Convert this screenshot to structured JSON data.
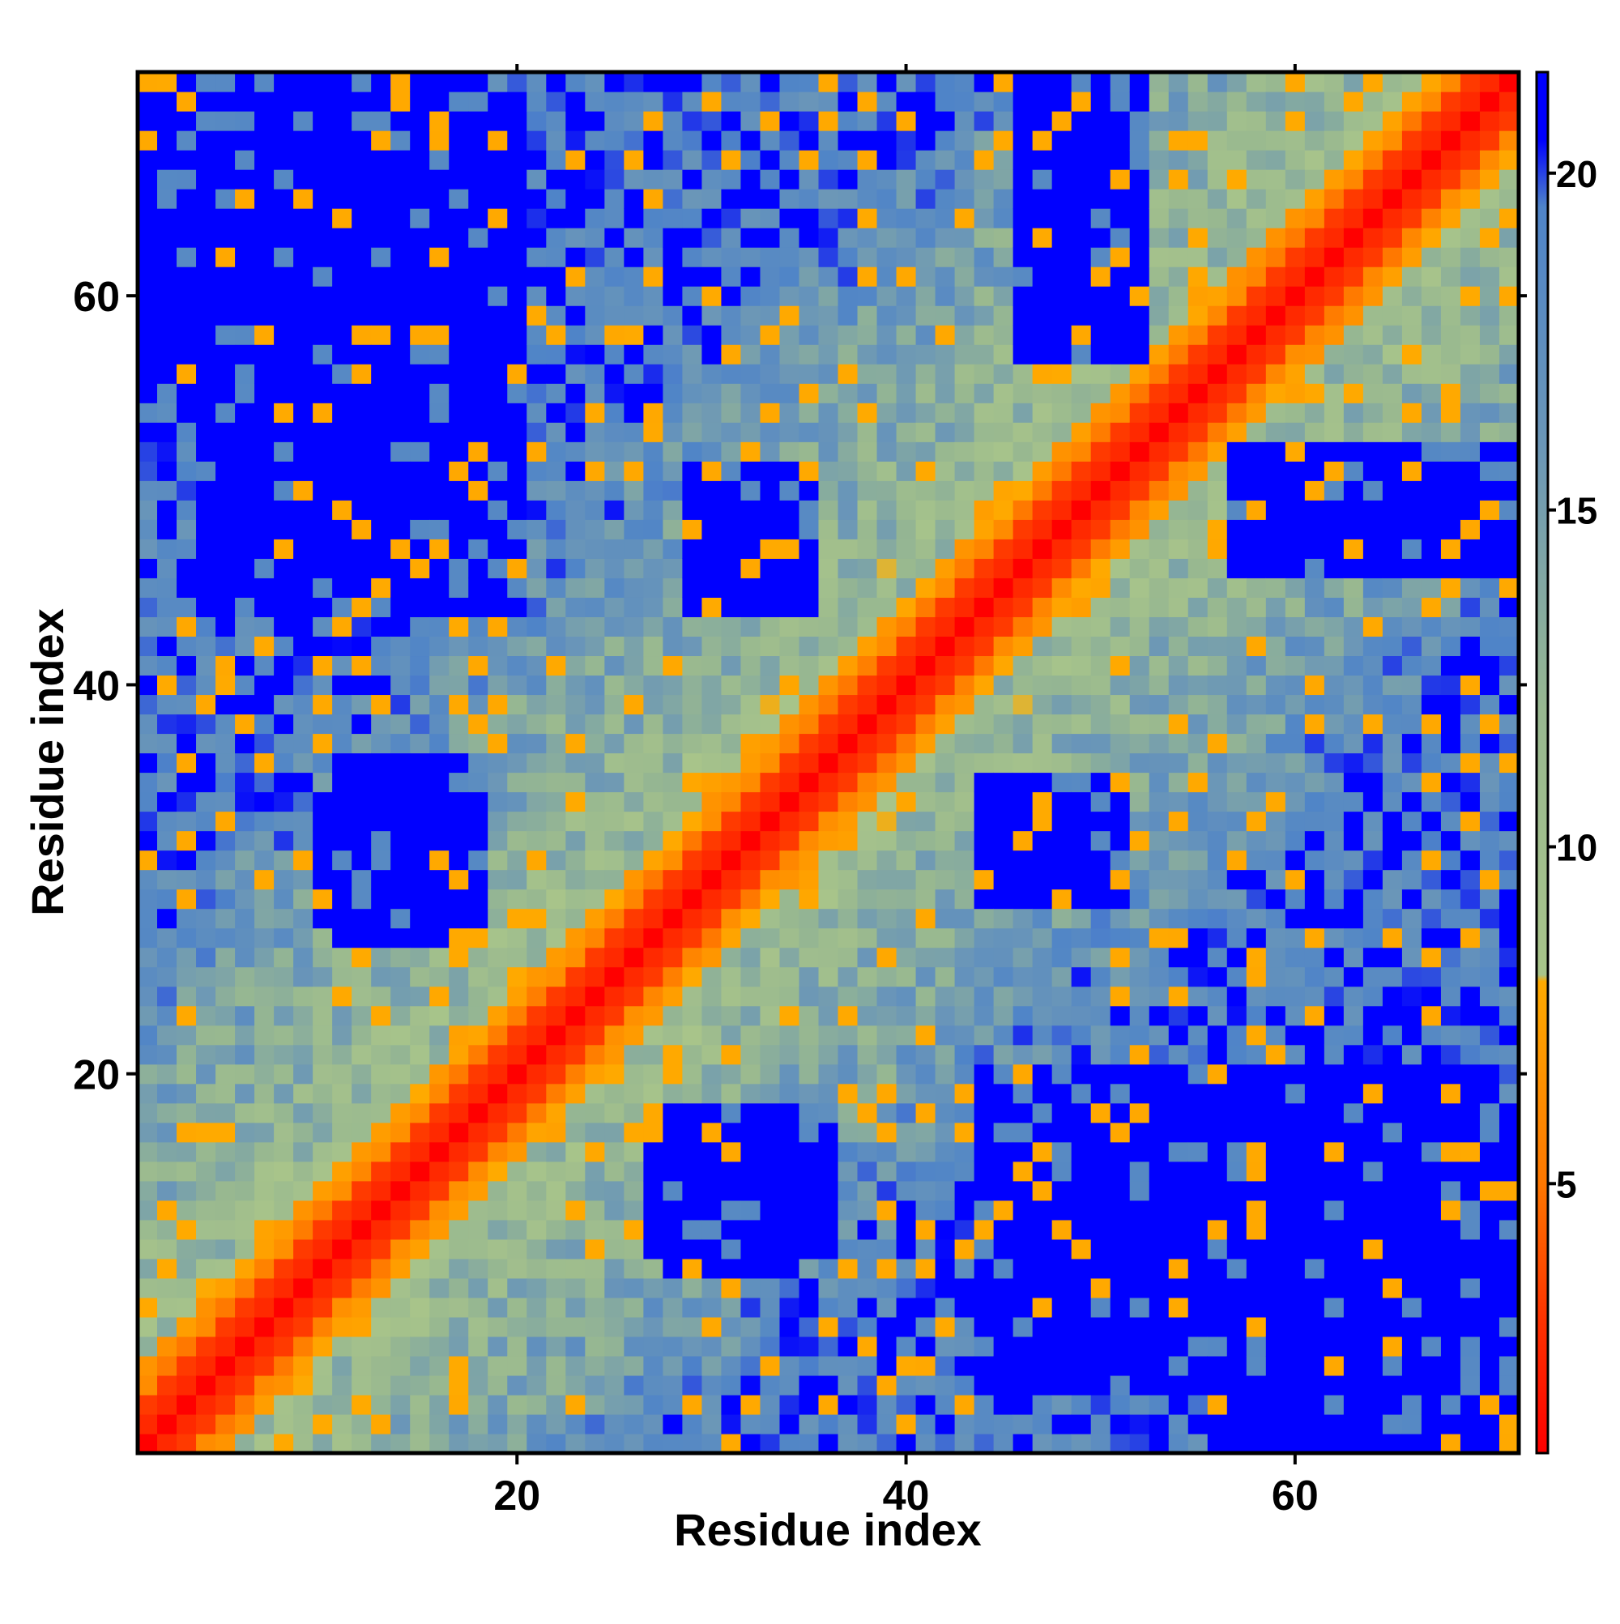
{
  "chart_data": {
    "type": "heatmap",
    "title": "",
    "xlabel": "Residue index",
    "ylabel": "Residue index",
    "n_residues": 71,
    "xlim": [
      1,
      71
    ],
    "ylim": [
      1,
      71
    ],
    "x_ticks": [
      20,
      40,
      60
    ],
    "y_ticks": [
      20,
      40,
      60
    ],
    "x_tick_labels": [
      "20",
      "40",
      "60"
    ],
    "y_tick_labels": [
      "20",
      "40",
      "60"
    ],
    "value_description": "pairwise residue distance, diagonal minimum",
    "colorbar": {
      "range": [
        1,
        21.5
      ],
      "ticks": [
        5,
        10,
        15,
        20
      ],
      "tick_labels": [
        "5",
        "10",
        "15",
        "20"
      ],
      "stops": [
        {
          "value": 1,
          "color": "#ff0000"
        },
        {
          "value": 3,
          "color": "#ff3300"
        },
        {
          "value": 5,
          "color": "#ff7700"
        },
        {
          "value": 8,
          "color": "#ffaa00"
        },
        {
          "value": 8.1,
          "color": "#a8c48a"
        },
        {
          "value": 12,
          "color": "#98b890"
        },
        {
          "value": 16,
          "color": "#6a96b8"
        },
        {
          "value": 19.5,
          "color": "#4f84c8"
        },
        {
          "value": 20.5,
          "color": "#0000ff"
        },
        {
          "value": 21.5,
          "color": "#0000ff"
        }
      ]
    },
    "contact_regions": [
      {
        "i": [
          1,
          16
        ],
        "j": [
          55,
          71
        ],
        "level": 21
      },
      {
        "i": [
          4,
          20
        ],
        "j": [
          44,
          70
        ],
        "level": 21
      },
      {
        "i": [
          10,
          18
        ],
        "j": [
          28,
          34
        ],
        "level": 21
      },
      {
        "i": [
          29,
          35
        ],
        "j": [
          44,
          51
        ],
        "level": 21
      },
      {
        "i": [
          46,
          52
        ],
        "j": [
          57,
          71
        ],
        "level": 21
      },
      {
        "i": [
          56,
          71
        ],
        "j": [
          1,
          16
        ],
        "level": 21
      },
      {
        "i": [
          44,
          70
        ],
        "j": [
          4,
          20
        ],
        "level": 21
      },
      {
        "i": [
          28,
          34
        ],
        "j": [
          10,
          18
        ],
        "level": 21
      },
      {
        "i": [
          44,
          51
        ],
        "j": [
          29,
          35
        ],
        "level": 21
      },
      {
        "i": [
          57,
          71
        ],
        "j": [
          46,
          52
        ],
        "level": 21
      },
      {
        "i": [
          27,
          36
        ],
        "j": [
          11,
          17
        ],
        "level": 21
      },
      {
        "i": [
          11,
          17
        ],
        "j": [
          27,
          36
        ],
        "level": 21
      }
    ]
  }
}
